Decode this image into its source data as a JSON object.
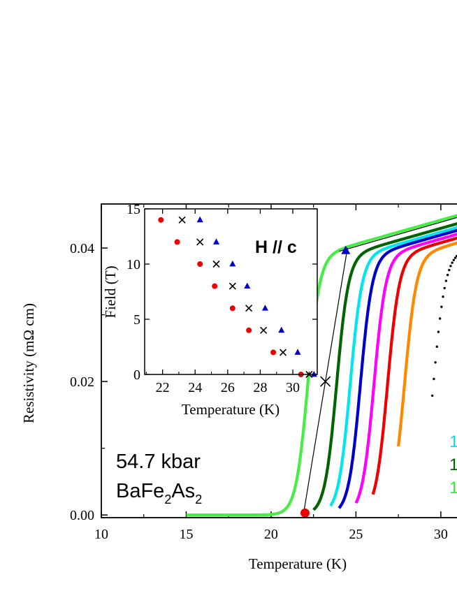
{
  "chart_data": [
    {
      "type": "line",
      "xlabel": "Temperature (K)",
      "ylabel": "Resistivity (mΩ cm)",
      "xlim": [
        10,
        31.2
      ],
      "ylim": [
        -0.0004,
        0.0466
      ],
      "x_ticks": [
        "10",
        "15",
        "20",
        "25",
        "30"
      ],
      "y_ticks": [
        "0.00",
        "0.02",
        "0.04"
      ],
      "annotation_pressure": "54.7 kbar",
      "annotation_compound": {
        "base1": "BaFe",
        "sub1": "2",
        "base2": "As",
        "sub2": "2"
      },
      "legend_fragments": [
        {
          "text": "1",
          "color": "#00e5ee"
        },
        {
          "text": "1",
          "color": "#006400"
        },
        {
          "text": "1",
          "color": "#33ee33"
        }
      ],
      "series": [
        {
          "color": "#44ee44",
          "onset": 23.5,
          "tmin": 15.0
        },
        {
          "color": "#006400",
          "onset": 25.2,
          "tmin": 22.5
        },
        {
          "color": "#00e5ee",
          "onset": 26.0,
          "tmin": 23.5
        },
        {
          "color": "#0000cc",
          "onset": 26.6,
          "tmin": 24.0
        },
        {
          "color": "#ff00ff",
          "onset": 27.4,
          "tmin": 25.0
        },
        {
          "color": "#ee0000",
          "onset": 28.2,
          "tmin": 26.0
        },
        {
          "color": "#ff8800",
          "onset": 29.2,
          "tmin": 27.5
        },
        {
          "color": "#000000",
          "onset": 30.9,
          "tmin": 29.5,
          "dotted": true
        }
      ],
      "markers": [
        {
          "shape": "circle",
          "color": "#ee0000",
          "x": 22.0,
          "y": 0.0003
        },
        {
          "shape": "cross",
          "color": "#000000",
          "x": 23.2,
          "y": 0.02
        },
        {
          "shape": "triangle",
          "color": "#0000cc",
          "x": 24.4,
          "y": 0.0396
        }
      ],
      "fit_lines": [
        {
          "x": [
            21.9,
            24.5
          ],
          "y": [
            0.0,
            0.04
          ]
        },
        {
          "x": [
            24.0,
            31.0
          ],
          "y": [
            0.0395,
            0.0446
          ]
        }
      ]
    },
    {
      "type": "scatter",
      "title": "H // c",
      "xlabel": "Temperature (K)",
      "ylabel": "Field (T)",
      "xlim": [
        20.9,
        31.5
      ],
      "ylim": [
        0,
        15
      ],
      "x_ticks": [
        "22",
        "24",
        "26",
        "28",
        "30"
      ],
      "y_ticks": [
        "0",
        "5",
        "10",
        "15"
      ],
      "series": [
        {
          "shape": "circle",
          "color": "#ee0000",
          "x": [
            21.9,
            22.9,
            24.3,
            25.2,
            26.3,
            27.3,
            28.8,
            30.5
          ],
          "y": [
            14,
            12,
            10,
            8,
            6,
            4,
            2,
            0
          ]
        },
        {
          "shape": "cross",
          "color": "#000000",
          "x": [
            23.2,
            24.3,
            25.3,
            26.3,
            27.3,
            28.2,
            29.4,
            31.0
          ],
          "y": [
            14,
            12,
            10,
            8,
            6,
            4,
            2,
            0
          ]
        },
        {
          "shape": "triangle",
          "color": "#0000cc",
          "x": [
            24.3,
            25.3,
            26.3,
            27.2,
            28.3,
            29.3,
            30.3,
            31.3
          ],
          "y": [
            14,
            12,
            10,
            8,
            6,
            4,
            2,
            0
          ]
        }
      ]
    }
  ]
}
